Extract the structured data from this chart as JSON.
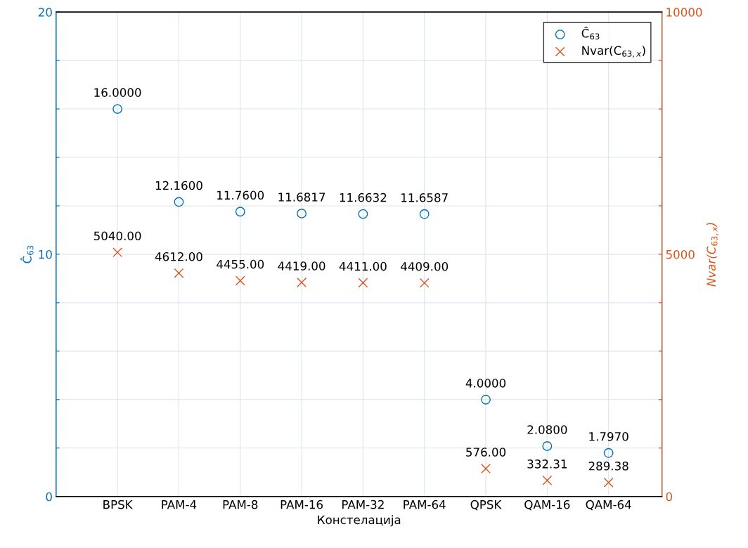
{
  "chart_data": {
    "type": "scatter",
    "xlabel": "Констелација",
    "ylabel": "Ĉ$_{63}$",
    "y2label": "Nvar(C$_{63,x}$)",
    "categories": [
      "BPSK",
      "PAM-4",
      "PAM-8",
      "PAM-16",
      "PAM-32",
      "PAM-64",
      "QPSK",
      "QAM-16",
      "QAM-64"
    ],
    "series": [
      {
        "name": "Ĉ$_{63}$",
        "color": "#0072bd",
        "marker": "circle",
        "values": [
          16,
          12.16,
          11.76,
          11.6817,
          11.6632,
          11.6587,
          4,
          2.08,
          1.797
        ],
        "value_labels": [
          "16.0000",
          "12.1600",
          "11.7600",
          "11.6817",
          "11.6632",
          "11.6587",
          "4.0000",
          "2.0800",
          "1.7970"
        ]
      },
      {
        "name": "Nvar(C$_{63,x}$)",
        "color": "#d95319",
        "marker": "cross",
        "axis": "y2",
        "values": [
          5040,
          4612,
          4455,
          4419,
          4411,
          4409,
          576,
          332.31,
          289.38
        ],
        "value_labels": [
          "5040.00",
          "4612.00",
          "4455.00",
          "4419.00",
          "4411.00",
          "4409.00",
          "576.00",
          "332.31",
          "289.38"
        ]
      }
    ],
    "ylim": [
      0,
      20
    ],
    "yticks": [
      0,
      {
        "value": 2,
        "label": null
      },
      {
        "value": 4,
        "label": null
      },
      {
        "value": 6,
        "label": null
      },
      {
        "value": 8,
        "label": null
      },
      10,
      {
        "value": 12,
        "label": null
      },
      {
        "value": 14,
        "label": null
      },
      {
        "value": 16,
        "label": null
      },
      {
        "value": 18,
        "label": null
      },
      20
    ],
    "y2lim": [
      0,
      10000
    ],
    "y2ticks": [
      0,
      {
        "value": 1000,
        "label": null
      },
      {
        "value": 2000,
        "label": null
      },
      {
        "value": 3000,
        "label": null
      },
      {
        "value": 4000,
        "label": null
      },
      5000,
      {
        "value": 6000,
        "label": null
      },
      {
        "value": 7000,
        "label": null
      },
      {
        "value": 8000,
        "label": null
      },
      {
        "value": 9000,
        "label": null
      },
      10000
    ],
    "grid": true,
    "legend": "top right"
  }
}
